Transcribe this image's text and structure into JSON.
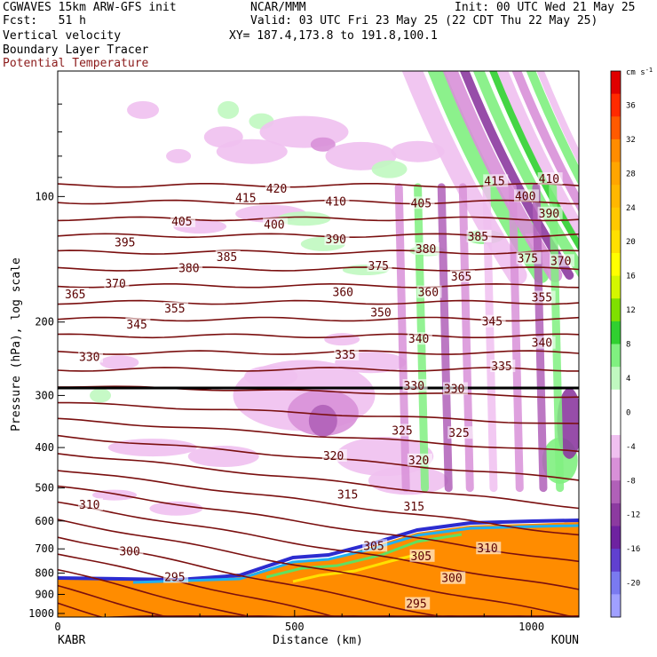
{
  "header": {
    "line1_left": "CGWAVES 15km ARW-GFS init",
    "line1_mid": "NCAR/MMM",
    "line1_right": "Init: 00 UTC Wed 21 May 25",
    "line2_left": "Fcst:   51 h",
    "line2_right": "Valid: 03 UTC Fri 23 May 25 (22 CDT Thu 22 May 25)",
    "line3_left": "Vertical velocity",
    "line3_right": "XY= 187.4,173.8 to 191.8,100.1",
    "line4_left": "Boundary Layer Tracer",
    "line5_left": "Potential Temperature"
  },
  "chart_data": {
    "type": "heatmap",
    "title": "Vertical velocity",
    "xlabel": "Distance (km)",
    "ylabel": "Pressure (hPa), log scale",
    "x_range": [
      0,
      1100
    ],
    "x_ticks": [
      0,
      500,
      1000
    ],
    "x_end_labels": {
      "left": "KABR",
      "right": "KOUN"
    },
    "y_scale": "log",
    "y_range_hpa": [
      1020,
      50
    ],
    "y_ticks": [
      100,
      200,
      300,
      400,
      500,
      600,
      700,
      800,
      900,
      1000
    ],
    "colorbar": {
      "units": "cm s",
      "units_sup": "-1",
      "ticks": [
        36,
        32,
        28,
        24,
        20,
        16,
        12,
        8,
        4,
        0,
        -4,
        -8,
        -12,
        -16,
        -20
      ],
      "colors": [
        "#e00000",
        "#ff2a00",
        "#ff5a00",
        "#ff8c00",
        "#ffa500",
        "#ffb700",
        "#ffc800",
        "#ffe000",
        "#ffff00",
        "#d4f700",
        "#7fe000",
        "#30d030",
        "#80f080",
        "#c0f8c0",
        "#ffffff",
        "#ffffff",
        "#f0c0f0",
        "#d890d8",
        "#b060b8",
        "#8c3aa0",
        "#6e22a0",
        "#6040d0",
        "#7a7af0",
        "#a0a0ff"
      ]
    },
    "theta_contour_labels": [
      {
        "label": "420",
        "d": 440,
        "p": 96
      },
      {
        "label": "415",
        "d": 375,
        "p": 101
      },
      {
        "label": "415",
        "d": 900,
        "p": 92
      },
      {
        "label": "410",
        "d": 565,
        "p": 103
      },
      {
        "label": "410",
        "d": 1015,
        "p": 91
      },
      {
        "label": "405",
        "d": 240,
        "p": 115
      },
      {
        "label": "405",
        "d": 745,
        "p": 104
      },
      {
        "label": "400",
        "d": 435,
        "p": 117
      },
      {
        "label": "400",
        "d": 965,
        "p": 100
      },
      {
        "label": "395",
        "d": 120,
        "p": 129
      },
      {
        "label": "390",
        "d": 565,
        "p": 127
      },
      {
        "label": "390",
        "d": 1015,
        "p": 110
      },
      {
        "label": "385",
        "d": 335,
        "p": 140
      },
      {
        "label": "385",
        "d": 865,
        "p": 125
      },
      {
        "label": "380",
        "d": 255,
        "p": 149
      },
      {
        "label": "380",
        "d": 755,
        "p": 134
      },
      {
        "label": "375",
        "d": 655,
        "p": 147
      },
      {
        "label": "375",
        "d": 970,
        "p": 141
      },
      {
        "label": "370",
        "d": 100,
        "p": 162
      },
      {
        "label": "370",
        "d": 1040,
        "p": 143
      },
      {
        "label": "365",
        "d": 15,
        "p": 172
      },
      {
        "label": "365",
        "d": 830,
        "p": 156
      },
      {
        "label": "360",
        "d": 580,
        "p": 170
      },
      {
        "label": "360",
        "d": 760,
        "p": 170
      },
      {
        "label": "355",
        "d": 225,
        "p": 186
      },
      {
        "label": "355",
        "d": 1000,
        "p": 175
      },
      {
        "label": "350",
        "d": 660,
        "p": 190
      },
      {
        "label": "345",
        "d": 145,
        "p": 203
      },
      {
        "label": "345",
        "d": 895,
        "p": 200
      },
      {
        "label": "340",
        "d": 740,
        "p": 220
      },
      {
        "label": "340",
        "d": 1000,
        "p": 225
      },
      {
        "label": "335",
        "d": 585,
        "p": 240
      },
      {
        "label": "335",
        "d": 915,
        "p": 256
      },
      {
        "label": "330",
        "d": 45,
        "p": 243
      },
      {
        "label": "330",
        "d": 730,
        "p": 285
      },
      {
        "label": "330",
        "d": 815,
        "p": 290
      },
      {
        "label": "325",
        "d": 705,
        "p": 365
      },
      {
        "label": "325",
        "d": 825,
        "p": 370
      },
      {
        "label": "320",
        "d": 560,
        "p": 420
      },
      {
        "label": "320",
        "d": 740,
        "p": 430
      },
      {
        "label": "315",
        "d": 590,
        "p": 520
      },
      {
        "label": "315",
        "d": 730,
        "p": 555
      },
      {
        "label": "310",
        "d": 45,
        "p": 550
      },
      {
        "label": "310",
        "d": 885,
        "p": 700
      },
      {
        "label": "305",
        "d": 645,
        "p": 690
      },
      {
        "label": "305",
        "d": 745,
        "p": 730
      },
      {
        "label": "300",
        "d": 130,
        "p": 712
      },
      {
        "label": "300",
        "d": 810,
        "p": 825
      },
      {
        "label": "295",
        "d": 225,
        "p": 820
      },
      {
        "label": "295",
        "d": 735,
        "p": 950
      }
    ]
  }
}
